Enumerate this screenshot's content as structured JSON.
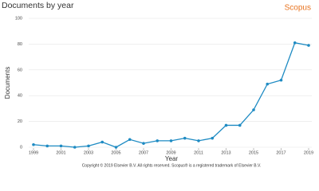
{
  "chart_data": {
    "type": "line",
    "title": "Documents by year",
    "brand": "Scopus",
    "x_label": "Year",
    "y_label": "Documents",
    "footer": "Copyright © 2019 Elsevier B.V. All rights reserved. Scopus® is a registered trademark of Elsevier B.V.",
    "x": [
      1999,
      2000,
      2001,
      2002,
      2003,
      2004,
      2005,
      2006,
      2007,
      2008,
      2009,
      2010,
      2011,
      2012,
      2013,
      2014,
      2015,
      2016,
      2017,
      2018,
      2019
    ],
    "series": [
      {
        "name": "Documents",
        "color": "#1e8bc3",
        "values": [
          2,
          1,
          1,
          0,
          1,
          4,
          0,
          6,
          3,
          5,
          5,
          7,
          5,
          7,
          17,
          17,
          29,
          49,
          52,
          81,
          79
        ]
      }
    ],
    "xlim": [
      1999,
      2019
    ],
    "xticks": [
      1999,
      2001,
      2003,
      2005,
      2007,
      2009,
      2011,
      2013,
      2015,
      2017,
      2019
    ],
    "ylim": [
      0,
      100
    ],
    "yticks": [
      0,
      20,
      40,
      60,
      80,
      100
    ],
    "grid": true
  }
}
